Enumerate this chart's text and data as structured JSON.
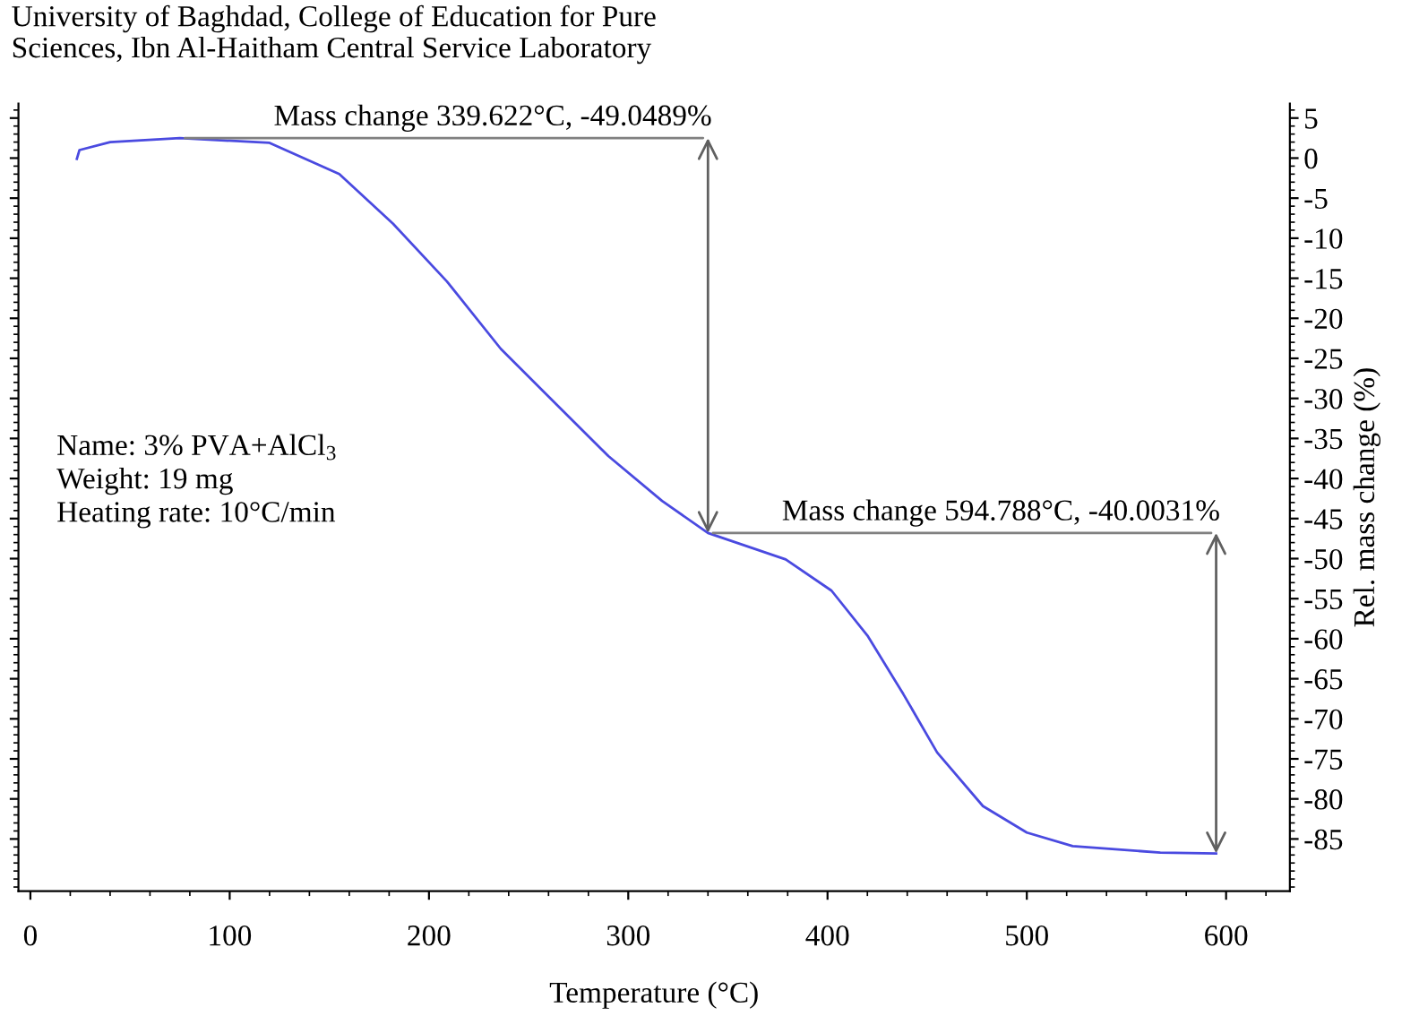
{
  "chart_data": {
    "type": "line",
    "title": "University of Baghdad, College of Education for Pure\nSciences, Ibn Al-Haitham Central Service Laboratory",
    "xlabel": "Temperature (°C)",
    "ylabel": "Rel. mass change (%)",
    "series": [
      {
        "color": "#4a4ae0",
        "x": [
          23.3,
          24.6,
          40,
          75,
          120,
          155,
          182,
          209,
          236,
          263,
          290,
          317,
          340,
          379,
          402,
          420,
          438,
          455,
          478,
          500,
          523,
          567,
          595
        ],
        "values": [
          -0.1,
          1.0,
          2.0,
          2.5,
          1.9,
          -2.0,
          -8.2,
          -15.4,
          -23.8,
          -30.5,
          -37.2,
          -42.8,
          -46.8,
          -50.1,
          -54.0,
          -59.6,
          -66.9,
          -74.2,
          -80.9,
          -84.2,
          -85.9,
          -86.7,
          -86.8
        ]
      }
    ],
    "annotations": [
      {
        "text": "Mass change 339.622°C, -49.0489%",
        "x": 340,
        "y": -46.8
      },
      {
        "text": "Mass change 594.788°C, -40.0031%",
        "x": 595,
        "y": -86.8
      },
      "Name: 3% PVA+AlCl$_{3}$\nWeight: 19 mg\nHeating rate: 10°C/min"
    ],
    "xlim": [
      -6,
      632
    ],
    "xticks": [
      0,
      100,
      200,
      300,
      400,
      500,
      600
    ],
    "ylim": [
      -91.5,
      6.8
    ],
    "yticks": [
      5,
      0,
      -5,
      -10,
      -15,
      -20,
      -25,
      -30,
      -35,
      -40,
      -45,
      -50,
      -55,
      -60,
      -65,
      -70,
      -75,
      -80,
      -85
    ],
    "grid": false,
    "marker": "none",
    "line_style": "solid"
  }
}
